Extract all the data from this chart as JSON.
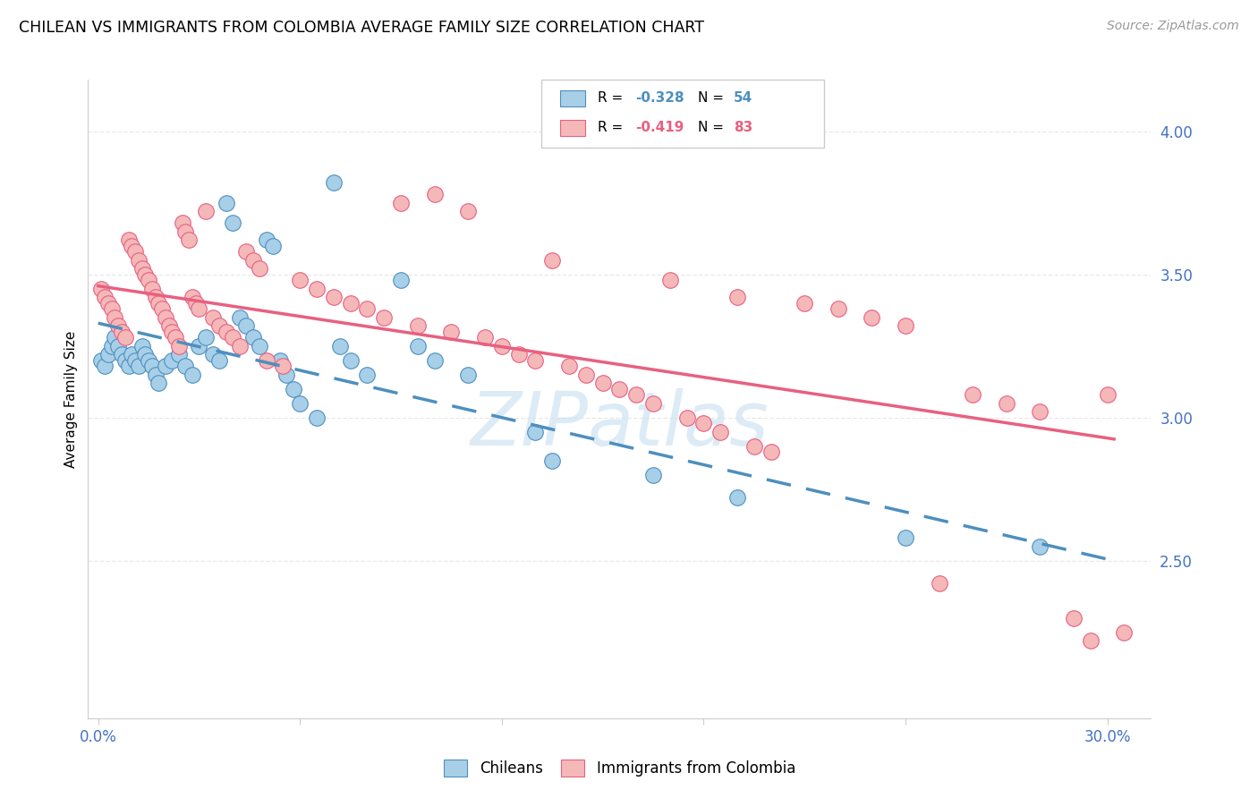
{
  "title": "CHILEAN VS IMMIGRANTS FROM COLOMBIA AVERAGE FAMILY SIZE CORRELATION CHART",
  "source": "Source: ZipAtlas.com",
  "ylabel": "Average Family Size",
  "yticks": [
    2.5,
    3.0,
    3.5,
    4.0
  ],
  "ymin": 1.95,
  "ymax": 4.18,
  "xmin": -0.003,
  "xmax": 0.313,
  "blue_color": "#a8cfe8",
  "pink_color": "#f4b8b8",
  "trendline_blue_color": "#4d8fbf",
  "trendline_pink_color": "#e86080",
  "watermark_color": "#c5dff0",
  "tick_color": "#4472c4",
  "grid_color": "#e8e8e8",
  "background_color": "#ffffff",
  "blue_trend_x": [
    0.0,
    0.302
  ],
  "blue_trend_y": [
    3.33,
    2.5
  ],
  "pink_trend_x": [
    0.0,
    0.302
  ],
  "pink_trend_y": [
    3.46,
    2.925
  ],
  "blue_points": [
    [
      0.001,
      3.2
    ],
    [
      0.002,
      3.18
    ],
    [
      0.003,
      3.22
    ],
    [
      0.004,
      3.25
    ],
    [
      0.005,
      3.28
    ],
    [
      0.006,
      3.25
    ],
    [
      0.007,
      3.22
    ],
    [
      0.008,
      3.2
    ],
    [
      0.009,
      3.18
    ],
    [
      0.01,
      3.22
    ],
    [
      0.011,
      3.2
    ],
    [
      0.012,
      3.18
    ],
    [
      0.013,
      3.25
    ],
    [
      0.014,
      3.22
    ],
    [
      0.015,
      3.2
    ],
    [
      0.016,
      3.18
    ],
    [
      0.017,
      3.15
    ],
    [
      0.018,
      3.12
    ],
    [
      0.02,
      3.18
    ],
    [
      0.022,
      3.2
    ],
    [
      0.024,
      3.22
    ],
    [
      0.026,
      3.18
    ],
    [
      0.028,
      3.15
    ],
    [
      0.03,
      3.25
    ],
    [
      0.032,
      3.28
    ],
    [
      0.034,
      3.22
    ],
    [
      0.036,
      3.2
    ],
    [
      0.038,
      3.75
    ],
    [
      0.04,
      3.68
    ],
    [
      0.042,
      3.35
    ],
    [
      0.044,
      3.32
    ],
    [
      0.046,
      3.28
    ],
    [
      0.048,
      3.25
    ],
    [
      0.05,
      3.62
    ],
    [
      0.052,
      3.6
    ],
    [
      0.054,
      3.2
    ],
    [
      0.056,
      3.15
    ],
    [
      0.058,
      3.1
    ],
    [
      0.06,
      3.05
    ],
    [
      0.065,
      3.0
    ],
    [
      0.07,
      3.82
    ],
    [
      0.072,
      3.25
    ],
    [
      0.075,
      3.2
    ],
    [
      0.08,
      3.15
    ],
    [
      0.09,
      3.48
    ],
    [
      0.095,
      3.25
    ],
    [
      0.1,
      3.2
    ],
    [
      0.11,
      3.15
    ],
    [
      0.13,
      2.95
    ],
    [
      0.135,
      2.85
    ],
    [
      0.165,
      2.8
    ],
    [
      0.19,
      2.72
    ],
    [
      0.24,
      2.58
    ],
    [
      0.28,
      2.55
    ]
  ],
  "pink_points": [
    [
      0.001,
      3.45
    ],
    [
      0.002,
      3.42
    ],
    [
      0.003,
      3.4
    ],
    [
      0.004,
      3.38
    ],
    [
      0.005,
      3.35
    ],
    [
      0.006,
      3.32
    ],
    [
      0.007,
      3.3
    ],
    [
      0.008,
      3.28
    ],
    [
      0.009,
      3.62
    ],
    [
      0.01,
      3.6
    ],
    [
      0.011,
      3.58
    ],
    [
      0.012,
      3.55
    ],
    [
      0.013,
      3.52
    ],
    [
      0.014,
      3.5
    ],
    [
      0.015,
      3.48
    ],
    [
      0.016,
      3.45
    ],
    [
      0.017,
      3.42
    ],
    [
      0.018,
      3.4
    ],
    [
      0.019,
      3.38
    ],
    [
      0.02,
      3.35
    ],
    [
      0.021,
      3.32
    ],
    [
      0.022,
      3.3
    ],
    [
      0.023,
      3.28
    ],
    [
      0.024,
      3.25
    ],
    [
      0.025,
      3.68
    ],
    [
      0.026,
      3.65
    ],
    [
      0.027,
      3.62
    ],
    [
      0.028,
      3.42
    ],
    [
      0.029,
      3.4
    ],
    [
      0.03,
      3.38
    ],
    [
      0.032,
      3.72
    ],
    [
      0.034,
      3.35
    ],
    [
      0.036,
      3.32
    ],
    [
      0.038,
      3.3
    ],
    [
      0.04,
      3.28
    ],
    [
      0.042,
      3.25
    ],
    [
      0.044,
      3.58
    ],
    [
      0.046,
      3.55
    ],
    [
      0.048,
      3.52
    ],
    [
      0.05,
      3.2
    ],
    [
      0.055,
      3.18
    ],
    [
      0.06,
      3.48
    ],
    [
      0.065,
      3.45
    ],
    [
      0.07,
      3.42
    ],
    [
      0.075,
      3.4
    ],
    [
      0.08,
      3.38
    ],
    [
      0.085,
      3.35
    ],
    [
      0.09,
      3.75
    ],
    [
      0.095,
      3.32
    ],
    [
      0.1,
      3.78
    ],
    [
      0.105,
      3.3
    ],
    [
      0.11,
      3.72
    ],
    [
      0.115,
      3.28
    ],
    [
      0.12,
      3.25
    ],
    [
      0.125,
      3.22
    ],
    [
      0.13,
      3.2
    ],
    [
      0.135,
      3.55
    ],
    [
      0.14,
      3.18
    ],
    [
      0.145,
      3.15
    ],
    [
      0.15,
      3.12
    ],
    [
      0.155,
      3.1
    ],
    [
      0.16,
      3.08
    ],
    [
      0.165,
      3.05
    ],
    [
      0.17,
      3.48
    ],
    [
      0.175,
      3.0
    ],
    [
      0.18,
      2.98
    ],
    [
      0.185,
      2.95
    ],
    [
      0.19,
      3.42
    ],
    [
      0.195,
      2.9
    ],
    [
      0.2,
      2.88
    ],
    [
      0.21,
      3.4
    ],
    [
      0.22,
      3.38
    ],
    [
      0.23,
      3.35
    ],
    [
      0.24,
      3.32
    ],
    [
      0.25,
      2.42
    ],
    [
      0.26,
      3.08
    ],
    [
      0.27,
      3.05
    ],
    [
      0.28,
      3.02
    ],
    [
      0.29,
      2.3
    ],
    [
      0.295,
      2.22
    ],
    [
      0.3,
      3.08
    ],
    [
      0.305,
      2.25
    ]
  ],
  "xtick_positions": [
    0.0,
    0.06,
    0.12,
    0.18,
    0.24,
    0.3
  ],
  "xtick_labels": [
    "0.0%",
    "",
    "",
    "",
    "",
    "30.0%"
  ]
}
